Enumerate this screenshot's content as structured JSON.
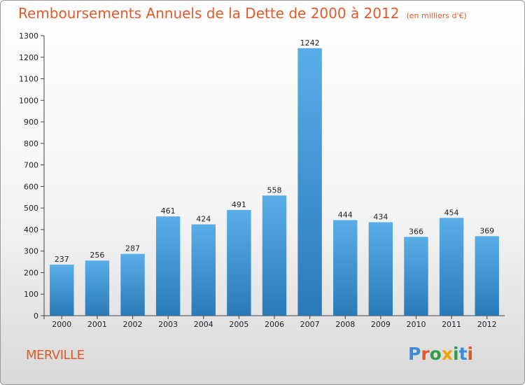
{
  "header": {
    "title": "Remboursements Annuels de la Dette de 2000 à 2012",
    "unit": "(en milliers d'€)"
  },
  "footer": {
    "commune": "MERVILLE",
    "logo": "Proxiti"
  },
  "colors": {
    "bar_top": "#5aaee8",
    "bar_bottom": "#2a7ab8",
    "title": "#e05a2a"
  },
  "chart_data": {
    "type": "bar",
    "title": "Remboursements Annuels de la Dette de 2000 à 2012",
    "subtitle": "(en milliers d'€)",
    "categories": [
      "2000",
      "2001",
      "2002",
      "2003",
      "2004",
      "2005",
      "2006",
      "2007",
      "2008",
      "2009",
      "2010",
      "2011",
      "2012"
    ],
    "values": [
      237,
      256,
      287,
      461,
      424,
      491,
      558,
      1242,
      444,
      434,
      366,
      454,
      369
    ],
    "ylim": [
      0,
      1300
    ],
    "yticks": [
      0,
      100,
      200,
      300,
      400,
      500,
      600,
      700,
      800,
      900,
      1000,
      1100,
      1200,
      1300
    ],
    "grid": false
  }
}
